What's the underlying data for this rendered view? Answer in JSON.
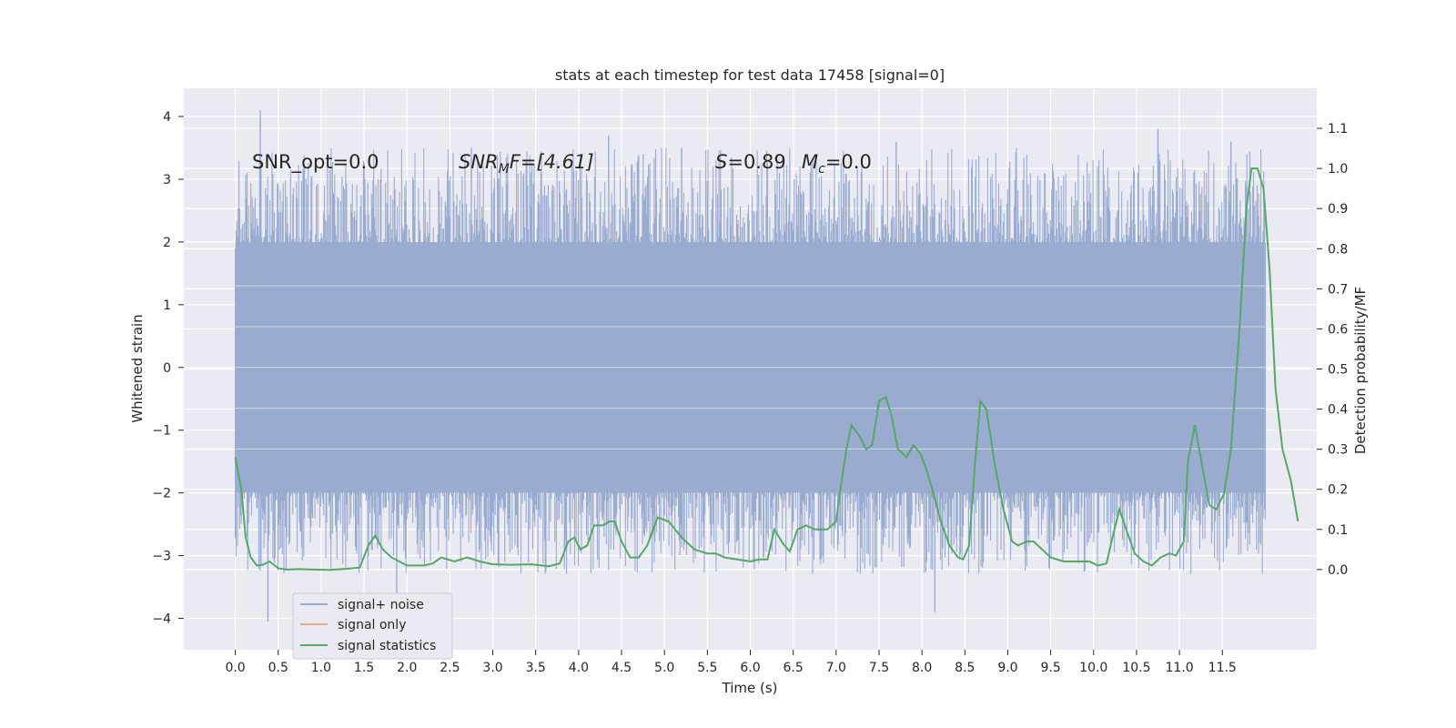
{
  "chart_data": {
    "type": "line",
    "title": "stats at each timestep for test data 17458 [signal=0]",
    "xlabel": "Time (s)",
    "ylabel": "Whitened strain",
    "ylabel_right": "Detection probability/MF",
    "xlim": [
      -0.6,
      12.6
    ],
    "ylim": [
      -4.5,
      4.45
    ],
    "ylim_right": [
      -0.2,
      1.2
    ],
    "x_ticks": [
      "0.0",
      "0.5",
      "1.0",
      "1.5",
      "2.0",
      "2.5",
      "3.0",
      "3.5",
      "4.0",
      "4.5",
      "5.0",
      "5.5",
      "6.0",
      "6.5",
      "7.0",
      "7.5",
      "8.0",
      "8.5",
      "9.0",
      "9.5",
      "10.0",
      "10.5",
      "11.0",
      "11.5"
    ],
    "y_ticks": [
      "4",
      "3",
      "2",
      "1",
      "0",
      "−1",
      "−2",
      "−3",
      "−4"
    ],
    "y_ticks_right": [
      "1.1",
      "1.0",
      "0.9",
      "0.8",
      "0.7",
      "0.6",
      "0.5",
      "0.4",
      "0.3",
      "0.2",
      "0.1",
      "0.0"
    ],
    "grid": true,
    "legend_position": "lower-left",
    "annotations": {
      "snr_opt": "SNR_opt=0.0",
      "snr_mf_prefix": "SNR",
      "snr_mf_sub": "M",
      "snr_mf_rest": "F=[4.61]",
      "s_letter": "S",
      "s_value": "=0.89",
      "mc_letter": "M",
      "mc_sub": "c",
      "mc_value": "=0.0"
    },
    "series": [
      {
        "name": "signal+ noise",
        "axis": "left",
        "color": "#9aabd0",
        "x_range": [
          0.0,
          12.0
        ],
        "band": [
          -2.0,
          2.0
        ],
        "notable_peaks": [
          [
            0.29,
            4.1
          ],
          [
            0.38,
            -4.05
          ],
          [
            1.88,
            -3.6
          ],
          [
            2.75,
            3.5
          ],
          [
            4.35,
            3.7
          ],
          [
            5.2,
            3.5
          ],
          [
            7.7,
            3.6
          ],
          [
            8.15,
            -3.9
          ],
          [
            10.75,
            3.8
          ],
          [
            11.6,
            3.6
          ]
        ]
      },
      {
        "name": "signal only",
        "axis": "left",
        "color": "#e8a88a",
        "points": []
      },
      {
        "name": "signal statistics",
        "axis": "right",
        "color": "#55a868",
        "points": [
          [
            0.0,
            0.28
          ],
          [
            0.07,
            0.2
          ],
          [
            0.12,
            0.08
          ],
          [
            0.18,
            0.03
          ],
          [
            0.25,
            0.01
          ],
          [
            0.32,
            0.012
          ],
          [
            0.4,
            0.02
          ],
          [
            0.5,
            0.003
          ],
          [
            0.6,
            0.0
          ],
          [
            0.75,
            0.001
          ],
          [
            0.9,
            0.0
          ],
          [
            1.1,
            -0.001
          ],
          [
            1.3,
            0.002
          ],
          [
            1.45,
            0.005
          ],
          [
            1.55,
            0.06
          ],
          [
            1.63,
            0.085
          ],
          [
            1.72,
            0.05
          ],
          [
            1.82,
            0.03
          ],
          [
            2.0,
            0.01
          ],
          [
            2.2,
            0.01
          ],
          [
            2.3,
            0.015
          ],
          [
            2.4,
            0.03
          ],
          [
            2.55,
            0.02
          ],
          [
            2.7,
            0.03
          ],
          [
            2.85,
            0.02
          ],
          [
            3.0,
            0.013
          ],
          [
            3.2,
            0.012
          ],
          [
            3.45,
            0.013
          ],
          [
            3.65,
            0.008
          ],
          [
            3.78,
            0.015
          ],
          [
            3.88,
            0.07
          ],
          [
            3.95,
            0.08
          ],
          [
            4.02,
            0.05
          ],
          [
            4.1,
            0.06
          ],
          [
            4.18,
            0.11
          ],
          [
            4.28,
            0.11
          ],
          [
            4.36,
            0.12
          ],
          [
            4.42,
            0.12
          ],
          [
            4.5,
            0.07
          ],
          [
            4.6,
            0.03
          ],
          [
            4.7,
            0.03
          ],
          [
            4.8,
            0.06
          ],
          [
            4.92,
            0.13
          ],
          [
            5.05,
            0.12
          ],
          [
            5.2,
            0.08
          ],
          [
            5.35,
            0.05
          ],
          [
            5.5,
            0.04
          ],
          [
            5.6,
            0.04
          ],
          [
            5.7,
            0.03
          ],
          [
            5.85,
            0.025
          ],
          [
            6.0,
            0.02
          ],
          [
            6.1,
            0.025
          ],
          [
            6.2,
            0.025
          ],
          [
            6.28,
            0.1
          ],
          [
            6.38,
            0.065
          ],
          [
            6.46,
            0.045
          ],
          [
            6.55,
            0.1
          ],
          [
            6.65,
            0.11
          ],
          [
            6.75,
            0.1
          ],
          [
            6.9,
            0.1
          ],
          [
            7.0,
            0.12
          ],
          [
            7.05,
            0.2
          ],
          [
            7.12,
            0.3
          ],
          [
            7.18,
            0.36
          ],
          [
            7.28,
            0.33
          ],
          [
            7.35,
            0.3
          ],
          [
            7.42,
            0.31
          ],
          [
            7.5,
            0.42
          ],
          [
            7.58,
            0.43
          ],
          [
            7.65,
            0.38
          ],
          [
            7.72,
            0.3
          ],
          [
            7.82,
            0.28
          ],
          [
            7.9,
            0.31
          ],
          [
            7.98,
            0.29
          ],
          [
            8.05,
            0.25
          ],
          [
            8.12,
            0.2
          ],
          [
            8.22,
            0.12
          ],
          [
            8.32,
            0.06
          ],
          [
            8.42,
            0.03
          ],
          [
            8.48,
            0.025
          ],
          [
            8.55,
            0.06
          ],
          [
            8.62,
            0.27
          ],
          [
            8.68,
            0.42
          ],
          [
            8.75,
            0.4
          ],
          [
            8.85,
            0.26
          ],
          [
            8.95,
            0.15
          ],
          [
            9.05,
            0.07
          ],
          [
            9.12,
            0.06
          ],
          [
            9.22,
            0.07
          ],
          [
            9.3,
            0.07
          ],
          [
            9.4,
            0.05
          ],
          [
            9.5,
            0.03
          ],
          [
            9.65,
            0.02
          ],
          [
            9.82,
            0.02
          ],
          [
            9.95,
            0.02
          ],
          [
            10.05,
            0.01
          ],
          [
            10.15,
            0.015
          ],
          [
            10.22,
            0.08
          ],
          [
            10.3,
            0.15
          ],
          [
            10.38,
            0.1
          ],
          [
            10.48,
            0.04
          ],
          [
            10.58,
            0.02
          ],
          [
            10.68,
            0.01
          ],
          [
            10.78,
            0.03
          ],
          [
            10.88,
            0.04
          ],
          [
            10.96,
            0.035
          ],
          [
            11.05,
            0.07
          ],
          [
            11.1,
            0.27
          ],
          [
            11.18,
            0.36
          ],
          [
            11.28,
            0.24
          ],
          [
            11.35,
            0.16
          ],
          [
            11.43,
            0.15
          ],
          [
            11.52,
            0.19
          ],
          [
            11.6,
            0.3
          ],
          [
            11.7,
            0.6
          ],
          [
            11.78,
            0.9
          ],
          [
            11.84,
            1.0
          ],
          [
            11.91,
            1.0
          ],
          [
            11.98,
            0.95
          ],
          [
            12.05,
            0.75
          ],
          [
            12.12,
            0.45
          ],
          [
            12.2,
            0.3
          ],
          [
            12.3,
            0.22
          ],
          [
            12.38,
            0.12
          ]
        ]
      }
    ]
  }
}
